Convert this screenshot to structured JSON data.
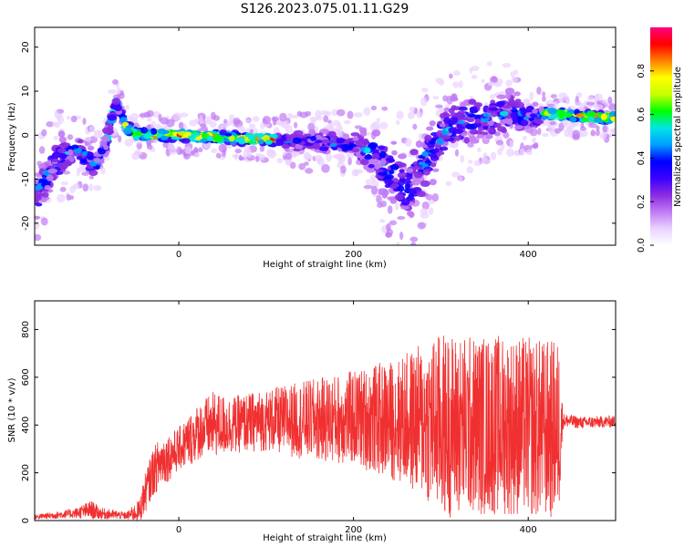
{
  "figure": {
    "title": "S126.2023.075.01.11.G29"
  },
  "chart_data": [
    {
      "type": "heatmap",
      "xlabel": "Height of straight line (km)",
      "ylabel": "Frequency (Hz)",
      "xlim": [
        -165,
        500
      ],
      "ylim": [
        -25,
        24.5
      ],
      "xticks": [
        0,
        200,
        400
      ],
      "yticks": [
        -20,
        -10,
        0,
        10,
        20
      ],
      "colorbar": {
        "label": "Normalized spectral amplitude",
        "range": [
          0,
          1
        ],
        "ticks": [
          0.0,
          0.2,
          0.4,
          0.6,
          0.8
        ],
        "colors": [
          "#ffffff",
          "#e9d2ff",
          "#c07af5",
          "#8a2be2",
          "#3a00ff",
          "#0000ff",
          "#00a0ff",
          "#00e5e5",
          "#00ff00",
          "#c8ff00",
          "#ffff00",
          "#ff8000",
          "#ff0000",
          "#ff007f"
        ]
      },
      "ridge": {
        "x": [
          -165,
          -140,
          -120,
          -105,
          -95,
          -85,
          -78,
          -72,
          -68,
          -60,
          -50,
          -30,
          0,
          50,
          100,
          150,
          200,
          220,
          240,
          260,
          280,
          300,
          320,
          350,
          380,
          400,
          420,
          450,
          480,
          500
        ],
        "y": [
          -14,
          -6,
          -3,
          -5,
          -7,
          -3,
          3,
          8,
          6,
          2,
          0,
          0,
          0,
          -0.5,
          -1,
          -1.5,
          -2,
          -4,
          -8,
          -12,
          -6,
          0,
          3,
          4,
          5,
          4,
          5,
          4.5,
          4,
          4
        ],
        "spread": [
          5,
          4,
          4,
          3,
          2,
          2,
          2,
          2,
          2,
          1,
          1,
          1,
          1,
          1,
          1,
          2,
          2,
          4,
          6,
          7,
          7,
          5,
          5,
          5,
          4,
          3,
          1,
          1,
          1,
          1
        ]
      },
      "grid": false
    },
    {
      "type": "line",
      "color": "#f03030",
      "xlabel": "Height of straight line (km)",
      "ylabel": "SNR (10 * v/v)",
      "xlim": [
        -165,
        500
      ],
      "ylim": [
        0,
        920
      ],
      "xticks": [
        0,
        200,
        400
      ],
      "yticks": [
        0,
        200,
        400,
        600,
        800
      ],
      "envelope": {
        "x": [
          -165,
          -120,
          -100,
          -90,
          -60,
          -45,
          -40,
          -30,
          -20,
          -10,
          0,
          10,
          25,
          40,
          60,
          100,
          150,
          200,
          250,
          280,
          300,
          340,
          380,
          420,
          435,
          440,
          460,
          500
        ],
        "center": [
          15,
          30,
          45,
          30,
          20,
          40,
          100,
          200,
          250,
          270,
          300,
          330,
          380,
          400,
          400,
          420,
          420,
          430,
          420,
          420,
          400,
          400,
          400,
          380,
          380,
          420,
          410,
          415
        ],
        "amplitude": [
          10,
          20,
          40,
          25,
          15,
          50,
          80,
          100,
          110,
          100,
          90,
          110,
          120,
          140,
          120,
          130,
          170,
          200,
          260,
          330,
          390,
          380,
          380,
          380,
          380,
          30,
          25,
          25
        ]
      },
      "grid": false
    }
  ]
}
